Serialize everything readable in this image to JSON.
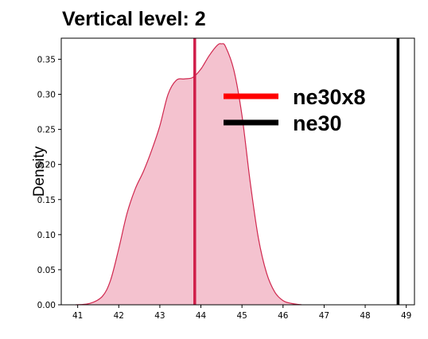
{
  "chart_data": {
    "type": "area",
    "title": "Vertical level: 2",
    "xlabel": "",
    "ylabel": "Density",
    "xlim": [
      40.6,
      49.2
    ],
    "ylim": [
      0,
      0.38
    ],
    "xticks": [
      41,
      42,
      43,
      44,
      45,
      46,
      47,
      48,
      49
    ],
    "yticks": [
      0.0,
      0.05,
      0.1,
      0.15,
      0.2,
      0.25,
      0.3,
      0.35
    ],
    "series": [
      {
        "name": "density",
        "color": "#f4c2cf",
        "edge_color": "#d0284f",
        "x": [
          40.95,
          41.3,
          41.6,
          41.8,
          42.0,
          42.2,
          42.4,
          42.6,
          42.8,
          43.0,
          43.2,
          43.4,
          43.6,
          43.8,
          44.0,
          44.2,
          44.4,
          44.5,
          44.6,
          44.8,
          45.0,
          45.2,
          45.4,
          45.6,
          45.8,
          46.0,
          46.2,
          46.45
        ],
        "values": [
          0.0,
          0.002,
          0.012,
          0.035,
          0.08,
          0.13,
          0.165,
          0.19,
          0.22,
          0.255,
          0.3,
          0.32,
          0.322,
          0.324,
          0.336,
          0.355,
          0.37,
          0.372,
          0.368,
          0.335,
          0.27,
          0.175,
          0.095,
          0.045,
          0.018,
          0.006,
          0.002,
          0.0
        ]
      }
    ],
    "vlines": [
      {
        "name": "ne30x8",
        "x": 43.85,
        "color": "#d01e4a"
      },
      {
        "name": "ne30",
        "x": 48.8,
        "color": "#000000"
      }
    ],
    "legend": [
      {
        "label": "ne30x8",
        "color": "#ff0000"
      },
      {
        "label": "ne30",
        "color": "#000000"
      }
    ],
    "legend_position": "top-right",
    "grid": false
  }
}
